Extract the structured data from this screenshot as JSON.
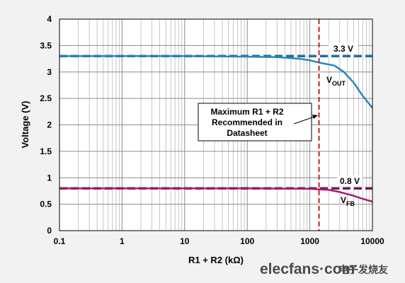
{
  "chart_data": {
    "type": "line",
    "x_scale": "log",
    "xlim": [
      0.1,
      10000
    ],
    "ylim": [
      0,
      4
    ],
    "x_ticks": [
      "0.1",
      "1",
      "10",
      "100",
      "1000",
      "10000"
    ],
    "y_ticks": [
      "0",
      "0.5",
      "1",
      "1.5",
      "2",
      "2.5",
      "3",
      "3.5",
      "4"
    ],
    "xlabel": "R1 + R2 (kΩ)",
    "ylabel": "Voltage (V)",
    "grid": true,
    "series": [
      {
        "name": "VOUT",
        "color": "#2a86b8",
        "x": [
          0.1,
          1,
          10,
          100,
          300,
          700,
          1000,
          1500,
          2500,
          3500,
          5000,
          7000,
          10000
        ],
        "y": [
          3.3,
          3.3,
          3.3,
          3.29,
          3.28,
          3.25,
          3.22,
          3.17,
          3.12,
          3.0,
          2.8,
          2.55,
          2.32
        ]
      },
      {
        "name": "3.3 V",
        "color": "#1f6f9c",
        "style": "dashed",
        "x": [
          0.1,
          10000
        ],
        "y": [
          3.3,
          3.3
        ]
      },
      {
        "name": "VFB",
        "color": "#a0206e",
        "x": [
          0.1,
          10,
          100,
          500,
          1000,
          2000,
          3000,
          5000,
          7000,
          10000
        ],
        "y": [
          0.8,
          0.8,
          0.8,
          0.795,
          0.79,
          0.77,
          0.73,
          0.66,
          0.6,
          0.55
        ]
      },
      {
        "name": "0.8 V",
        "color": "#7b1458",
        "style": "dashed",
        "x": [
          0.1,
          10000
        ],
        "y": [
          0.8,
          0.8
        ]
      }
    ],
    "vline": {
      "x": 1400,
      "color": "#c0202a",
      "style": "dashed"
    },
    "annotations": {
      "vout_ref": "3.3 V",
      "vfb_ref": "0.8 V",
      "vout_main": "V",
      "vout_sub": "OUT",
      "vfb_main": "V",
      "vfb_sub": "FB",
      "note_lines": [
        "Maximum R1 + R2",
        "Recommended in",
        "Datasheet"
      ]
    }
  },
  "watermark": {
    "domain": "elecfans·com",
    "cn": "电子发烧友"
  }
}
